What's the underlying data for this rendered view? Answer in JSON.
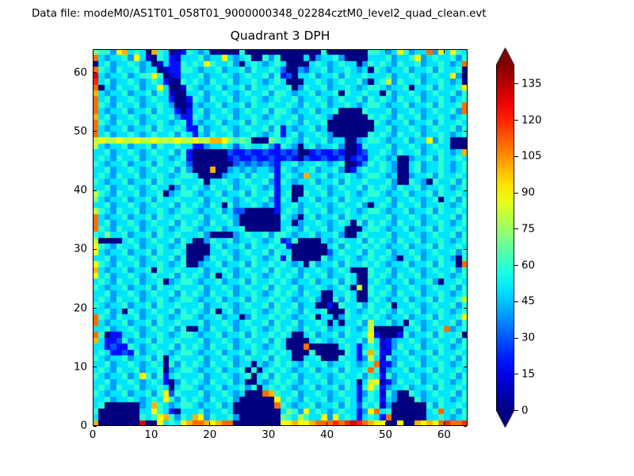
{
  "window": {
    "background": "#ffffff"
  },
  "header": {
    "label": "Data file: modeM0/AS1T01_058T01_9000000348_02284cztM0_level2_quad_clean.evt"
  },
  "chart_data": {
    "type": "heatmap",
    "title": "Quadrant 3 DPH",
    "xlabel": "",
    "ylabel": "",
    "xlim": [
      0,
      64
    ],
    "ylim": [
      0,
      64
    ],
    "x_ticks": [
      0,
      10,
      20,
      30,
      40,
      50,
      60
    ],
    "y_ticks": [
      0,
      10,
      20,
      30,
      40,
      50,
      60
    ],
    "grid_size": 64,
    "colormap": "jet",
    "vmin": 0,
    "vmax": 143,
    "cell_value_encoding": "each character is a hex digit 0-f; cell value = digit * 10 counts",
    "colorbar": {
      "ticks": [
        0,
        15,
        30,
        45,
        60,
        75,
        90,
        105,
        120,
        135
      ],
      "extend_arrows": "both",
      "over_color": "#b20000",
      "under_color": "#00007f"
    },
    "rows_top_to_bottom": [
      "76649a5650a650126545000006000000000000060000000665459645 5b495965",
      "b5455649510652155564559545600646000050455640000555645569 45655646",
      "05645565450152265659655640565456500005654565504656546556 4556545b",
      "b6546556455012266545564556465565300435564556545065455645 56465560",
      "d5455645669601255564556545655646230556455646556555645565 45655940",
      "c5645565456520065654655645565456500055654565564056846556 45565450",
      "b0546556455950016545564556465565560465564556545665455605 56465569",
      "a5455645564651005564556545655646654556455606556550645565 45655646",
      "b5645565456552002654655645565456556455654565564656546556 45565456",
      "b6546556455654001545564556465565565465564556545665455645 5646556b",
      "b5455645564655202564556545655646654556455600006555645565 4565564b",
      "a5645565456556422654655645565456556455654000000656546556 45565456",
      "b6546556455654562545564556465565565465560000000065455645 56465565",
      "b5455645564655652264556545655646254556450000000055645565 45655646",
      "b5645565456556465254655645565456256455654000000656546556 45565456",
      "89889889889888988988aa97676000765654655645500456654556455 9465000",
      "85455645564655655224556535655642654056455640026555645565 45655000",
      "55645565456556462000000322322322323002322320023556546556 4556545a",
      "56546556455654562000000232232232232032232230232565450045 56465565",
      "65455645564655653000000034343432556455654560024656540056 45565456",
      "55645565456556464000a004545455426545564556402565565400564 5565456",
      "56546556455654566500004556465562565 4a556455654566545004556465565",
      "65455645564655655560556545655642654556455646556555640065 40655646",
      "55645565456550465654655645565452550055654565564656546556 45565456",
      "86546556455604566545564556465562560065564556545665455645 56465565",
      "75455645564655655564556545655642650556455646556555645565 45605646",
      "55645565456556465654650645565452556455654565564056546556 45565456",
      "86546556455654566545564533000002565465564556545665455645 56465565",
      "b5455645564655655564556540000000654056455646556555645565 45655646",
      "b5645565456556465654655640000000550455654565064656546556 45565456",
      "b6546556455654566545564556000000565465564550005665455645 56465565",
      "65755645564655655564000045655646654556455640056555645565 45655646",
      "80000565456556465004655645565456236000054565564656546556 45565456",
      "96546556455654560000564556465565620000005646556565455645 56465565",
      "95455645564655650000556545655646550000003565564655645565 45655646",
      "55645565456556460004655645565456260000064556545656540556 45565406",
      "96546556455654560045564556465565654506455646556565455645 5646550b",
      "a54556455606556555645565456556465564556545650006556455654 5655646",
      "95645565456556465654605645565456565465564556500656546556 45565456",
      "56546556455604566545564556465565654556455646500565455645 56405565",
      "65455645564655655564556545655646556455654565080655645565 45655646",
      "55645565456556465654655645565456565465500556500656546556 45565456",
      "56546556455654566545564556465565654556400646500565455645 56465568",
      "65455645564655655564556545655646556455002065564655605565 45655646",
      "55645065456556465654605645565456565465560006545656546556 45565456",
      "b6546556455654566545564550465565654556055046556565455645 56465569",
      "b5455645564655655564556545655646556455650505564855645065 45655646",
      "55645565456556460054655645565456565465564556545800000556 4556b456",
      "b602255645565456654556455646556565005645564655692000264556465560",
      "a52236455646556555645565456556465000056545655648512455654 5655646",
      "55232265456556465654655645565456500 0b00000565256512465564 5565456",
      "56522326455654566545564556465565650006000006526a621556455 6465565",
      "65455645564605655564556545655646550055600065524851645565 45655646",
      "55645565456506465654655645505456565465564556545 6b224655645565456",
      "56546556455604566545564556060565654556455646556b614556455 6465565",
      "65455645964625655564556545605646556455654565564652645565 45655646",
      "55645565456520465654655645005456565465564556505891246556 45565456",
      "56546556455650566545564556460565654556455646526962455645 56465565",
      "65455645564693655564556545000ba6556455654565524651640065 45655646",
      "556455654565964656546556400000095654655645565256525400064 5565456",
      "5600000045a65456654556450000000b654556455646536561400000 06465565",
      "600000005596520555645565000000005764956545655249b5600000 056b5646",
      "500000006569a6465a946556400000007658655949565256 52b0000005565456",
      "a0000000d0095659abba9abb0000000099a99abbbcbcdcba9900900a 9a9bcbbc"
    ]
  },
  "axis_style": {
    "frame_color": "#000000",
    "tick_color": "#000000",
    "tick_direction": "in"
  }
}
